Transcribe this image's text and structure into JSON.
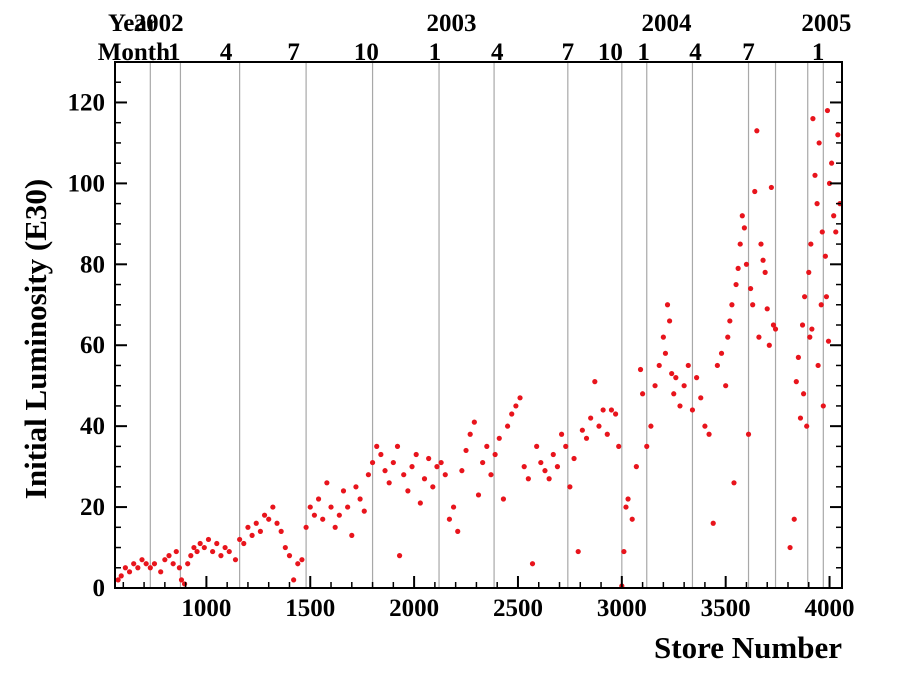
{
  "chart_data": {
    "type": "scatter",
    "title": "",
    "xlabel": "Store Number",
    "ylabel": "Initial Luminosity (E30)",
    "xlim": [
      560,
      4060
    ],
    "ylim": [
      0,
      130
    ],
    "xticks": [
      1000,
      1500,
      2000,
      2500,
      3000,
      3500,
      4000
    ],
    "xtick_labels": [
      "1000",
      "1500",
      "2000",
      "2500",
      "3000",
      "3500",
      "4000"
    ],
    "yticks": [
      0,
      20,
      40,
      60,
      80,
      100,
      120
    ],
    "ytick_labels": [
      "0",
      "20",
      "40",
      "60",
      "80",
      "100",
      "120"
    ],
    "grid": "vertical lines at month boundaries",
    "point_color": "#e8141c",
    "top_axis": {
      "year_row_label": "Year",
      "month_row_label": "Month",
      "years": [
        {
          "label": "2002",
          "x": 770
        },
        {
          "label": "2003",
          "x": 2180
        },
        {
          "label": "2004",
          "x": 3215
        },
        {
          "label": "2005",
          "x": 3985
        }
      ],
      "months": [
        {
          "label": "1",
          "x": 845
        },
        {
          "label": "4",
          "x": 1095
        },
        {
          "label": "7",
          "x": 1420
        },
        {
          "label": "10",
          "x": 1770
        },
        {
          "label": "1",
          "x": 2100
        },
        {
          "label": "4",
          "x": 2400
        },
        {
          "label": "7",
          "x": 2740
        },
        {
          "label": "10",
          "x": 2945
        },
        {
          "label": "1",
          "x": 3105
        },
        {
          "label": "4",
          "x": 3355
        },
        {
          "label": "7",
          "x": 3610
        },
        {
          "label": "1",
          "x": 3945
        }
      ],
      "month_boundaries": [
        730,
        875,
        1160,
        1480,
        1800,
        2120,
        2385,
        2740,
        3000,
        3120,
        3340,
        3610,
        3740,
        3895,
        3970
      ]
    },
    "series": [
      {
        "points": [
          [
            575,
            2
          ],
          [
            590,
            3
          ],
          [
            610,
            5
          ],
          [
            630,
            4
          ],
          [
            650,
            6
          ],
          [
            670,
            5
          ],
          [
            690,
            7
          ],
          [
            710,
            6
          ],
          [
            730,
            5
          ],
          [
            750,
            6
          ],
          [
            780,
            4
          ],
          [
            800,
            7
          ],
          [
            820,
            8
          ],
          [
            840,
            6
          ],
          [
            855,
            9
          ],
          [
            870,
            5
          ],
          [
            880,
            2
          ],
          [
            895,
            1
          ],
          [
            910,
            6
          ],
          [
            925,
            8
          ],
          [
            940,
            10
          ],
          [
            955,
            9
          ],
          [
            970,
            11
          ],
          [
            990,
            10
          ],
          [
            1010,
            12
          ],
          [
            1030,
            9
          ],
          [
            1050,
            11
          ],
          [
            1070,
            8
          ],
          [
            1090,
            10
          ],
          [
            1110,
            9
          ],
          [
            1140,
            7
          ],
          [
            1160,
            12
          ],
          [
            1180,
            11
          ],
          [
            1200,
            15
          ],
          [
            1220,
            13
          ],
          [
            1240,
            16
          ],
          [
            1260,
            14
          ],
          [
            1280,
            18
          ],
          [
            1300,
            17
          ],
          [
            1320,
            20
          ],
          [
            1340,
            16
          ],
          [
            1360,
            14
          ],
          [
            1380,
            10
          ],
          [
            1400,
            8
          ],
          [
            1420,
            2
          ],
          [
            1440,
            6
          ],
          [
            1460,
            7
          ],
          [
            1480,
            15
          ],
          [
            1500,
            20
          ],
          [
            1520,
            18
          ],
          [
            1540,
            22
          ],
          [
            1560,
            17
          ],
          [
            1580,
            26
          ],
          [
            1600,
            20
          ],
          [
            1620,
            15
          ],
          [
            1640,
            18
          ],
          [
            1660,
            24
          ],
          [
            1680,
            20
          ],
          [
            1700,
            13
          ],
          [
            1720,
            25
          ],
          [
            1740,
            22
          ],
          [
            1760,
            19
          ],
          [
            1780,
            28
          ],
          [
            1800,
            31
          ],
          [
            1820,
            35
          ],
          [
            1840,
            33
          ],
          [
            1860,
            29
          ],
          [
            1880,
            26
          ],
          [
            1900,
            31
          ],
          [
            1920,
            35
          ],
          [
            1930,
            8
          ],
          [
            1950,
            28
          ],
          [
            1970,
            24
          ],
          [
            1990,
            30
          ],
          [
            2010,
            33
          ],
          [
            2030,
            21
          ],
          [
            2050,
            27
          ],
          [
            2070,
            32
          ],
          [
            2090,
            25
          ],
          [
            2110,
            30
          ],
          [
            2130,
            31
          ],
          [
            2150,
            28
          ],
          [
            2170,
            17
          ],
          [
            2190,
            20
          ],
          [
            2210,
            14
          ],
          [
            2230,
            29
          ],
          [
            2250,
            34
          ],
          [
            2270,
            38
          ],
          [
            2290,
            41
          ],
          [
            2310,
            23
          ],
          [
            2330,
            31
          ],
          [
            2350,
            35
          ],
          [
            2370,
            28
          ],
          [
            2390,
            33
          ],
          [
            2410,
            37
          ],
          [
            2430,
            22
          ],
          [
            2450,
            40
          ],
          [
            2470,
            43
          ],
          [
            2490,
            45
          ],
          [
            2510,
            47
          ],
          [
            2530,
            30
          ],
          [
            2550,
            27
          ],
          [
            2570,
            6
          ],
          [
            2590,
            35
          ],
          [
            2610,
            31
          ],
          [
            2630,
            29
          ],
          [
            2650,
            27
          ],
          [
            2670,
            33
          ],
          [
            2690,
            30
          ],
          [
            2710,
            38
          ],
          [
            2730,
            35
          ],
          [
            2750,
            25
          ],
          [
            2770,
            32
          ],
          [
            2790,
            9
          ],
          [
            2810,
            39
          ],
          [
            2830,
            37
          ],
          [
            2850,
            42
          ],
          [
            2870,
            51
          ],
          [
            2890,
            40
          ],
          [
            2910,
            44
          ],
          [
            2930,
            38
          ],
          [
            2950,
            44
          ],
          [
            2970,
            43
          ],
          [
            2985,
            35
          ],
          [
            3000,
            0
          ],
          [
            3010,
            9
          ],
          [
            3020,
            20
          ],
          [
            3030,
            22
          ],
          [
            3050,
            17
          ],
          [
            3070,
            30
          ],
          [
            3090,
            54
          ],
          [
            3100,
            48
          ],
          [
            3120,
            35
          ],
          [
            3140,
            40
          ],
          [
            3160,
            50
          ],
          [
            3180,
            55
          ],
          [
            3200,
            62
          ],
          [
            3210,
            58
          ],
          [
            3220,
            70
          ],
          [
            3230,
            66
          ],
          [
            3240,
            53
          ],
          [
            3250,
            48
          ],
          [
            3260,
            52
          ],
          [
            3280,
            45
          ],
          [
            3300,
            50
          ],
          [
            3320,
            55
          ],
          [
            3340,
            44
          ],
          [
            3360,
            52
          ],
          [
            3380,
            47
          ],
          [
            3400,
            40
          ],
          [
            3420,
            38
          ],
          [
            3440,
            16
          ],
          [
            3460,
            55
          ],
          [
            3480,
            58
          ],
          [
            3500,
            50
          ],
          [
            3510,
            62
          ],
          [
            3520,
            66
          ],
          [
            3530,
            70
          ],
          [
            3540,
            26
          ],
          [
            3550,
            75
          ],
          [
            3560,
            79
          ],
          [
            3570,
            85
          ],
          [
            3580,
            92
          ],
          [
            3590,
            89
          ],
          [
            3600,
            80
          ],
          [
            3610,
            38
          ],
          [
            3620,
            74
          ],
          [
            3630,
            70
          ],
          [
            3640,
            98
          ],
          [
            3650,
            113
          ],
          [
            3660,
            62
          ],
          [
            3670,
            85
          ],
          [
            3680,
            81
          ],
          [
            3690,
            78
          ],
          [
            3700,
            69
          ],
          [
            3710,
            60
          ],
          [
            3720,
            99
          ],
          [
            3730,
            65
          ],
          [
            3740,
            64
          ],
          [
            3810,
            10
          ],
          [
            3830,
            17
          ],
          [
            3840,
            51
          ],
          [
            3850,
            57
          ],
          [
            3860,
            42
          ],
          [
            3870,
            65
          ],
          [
            3880,
            72
          ],
          [
            3890,
            40
          ],
          [
            3900,
            78
          ],
          [
            3910,
            85
          ],
          [
            3920,
            116
          ],
          [
            3930,
            102
          ],
          [
            3940,
            95
          ],
          [
            3950,
            110
          ],
          [
            3960,
            70
          ],
          [
            3970,
            45
          ],
          [
            3980,
            82
          ],
          [
            3990,
            118
          ],
          [
            4000,
            100
          ],
          [
            4010,
            105
          ],
          [
            4020,
            92
          ],
          [
            4030,
            88
          ],
          [
            4040,
            112
          ],
          [
            4050,
            95
          ],
          [
            3995,
            61
          ],
          [
            3985,
            72
          ],
          [
            3965,
            88
          ],
          [
            3945,
            55
          ],
          [
            3915,
            64
          ],
          [
            3905,
            62
          ],
          [
            3875,
            48
          ]
        ]
      }
    ]
  }
}
